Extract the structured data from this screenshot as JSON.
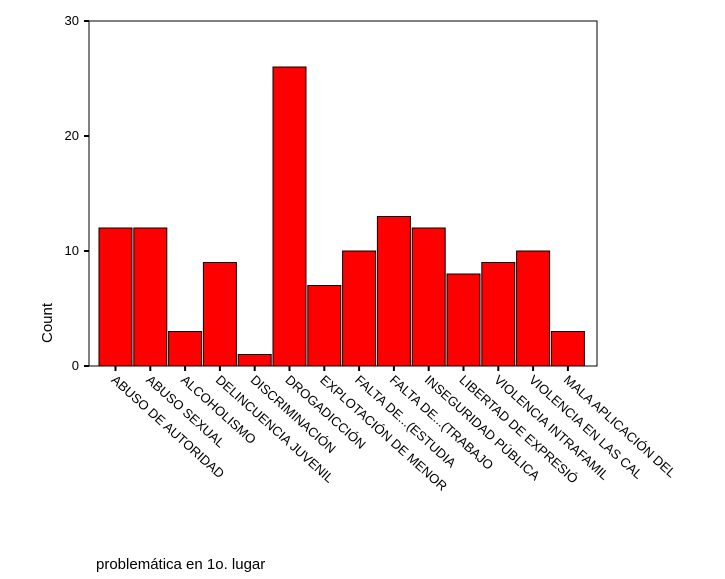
{
  "chart_data": {
    "type": "bar",
    "xlabel": "problemática en 1o. lugar",
    "ylabel": "Count",
    "ylim": [
      0,
      30
    ],
    "yticks": [
      0,
      10,
      20,
      30
    ],
    "grid": false,
    "colors": {
      "bar": "#ff0000",
      "bar_edge": "#000000",
      "axis": "#000000"
    },
    "categories": [
      "ABUSO DE AUTORIDAD",
      "ABUSO SEXUAL",
      "ALCOHOLISMO",
      "DELINCUENCIA JUVENIL",
      "DISCRIMINACIÓN",
      "DROGADICCIÓN",
      "EXPLOTACIÓN DE MENOR",
      "FALTA DE...(ESTUDIA",
      "FALTA DE...(TRABAJO",
      "INSEGURIDAD PÚBLICA",
      "LIBERTAD DE EXPRESIÓ",
      "VIOLENCIA INTRAFAMIL",
      "VIOLENCIA EN LAS CAL",
      "MALA APLICACIÓN DEL"
    ],
    "values": [
      12,
      12,
      3,
      9,
      1,
      26,
      7,
      10,
      13,
      12,
      8,
      9,
      10,
      3
    ]
  }
}
